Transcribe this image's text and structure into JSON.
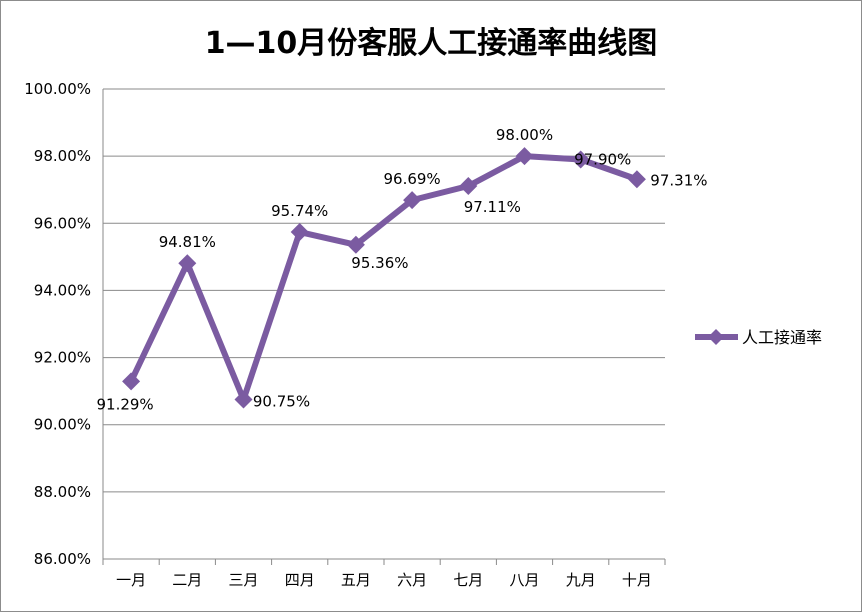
{
  "chart_data": {
    "type": "line",
    "title": "1—10月份客服人工接通率曲线图",
    "categories": [
      "一月",
      "二月",
      "三月",
      "四月",
      "五月",
      "六月",
      "七月",
      "八月",
      "九月",
      "十月"
    ],
    "series": [
      {
        "name": "人工接通率",
        "values": [
          91.29,
          94.81,
          90.75,
          95.74,
          95.36,
          96.69,
          97.11,
          98.0,
          97.9,
          97.31
        ],
        "labels": [
          "91.29%",
          "94.81%",
          "90.75%",
          "95.74%",
          "95.36%",
          "96.69%",
          "97.11%",
          "98.00%",
          "97.90%",
          "97.31%"
        ],
        "color": "#7b5ba1"
      }
    ],
    "ylim": [
      86,
      100
    ],
    "yticks": [
      "86.00%",
      "88.00%",
      "90.00%",
      "92.00%",
      "94.00%",
      "96.00%",
      "98.00%",
      "100.00%"
    ],
    "grid": true,
    "legend": "right"
  }
}
